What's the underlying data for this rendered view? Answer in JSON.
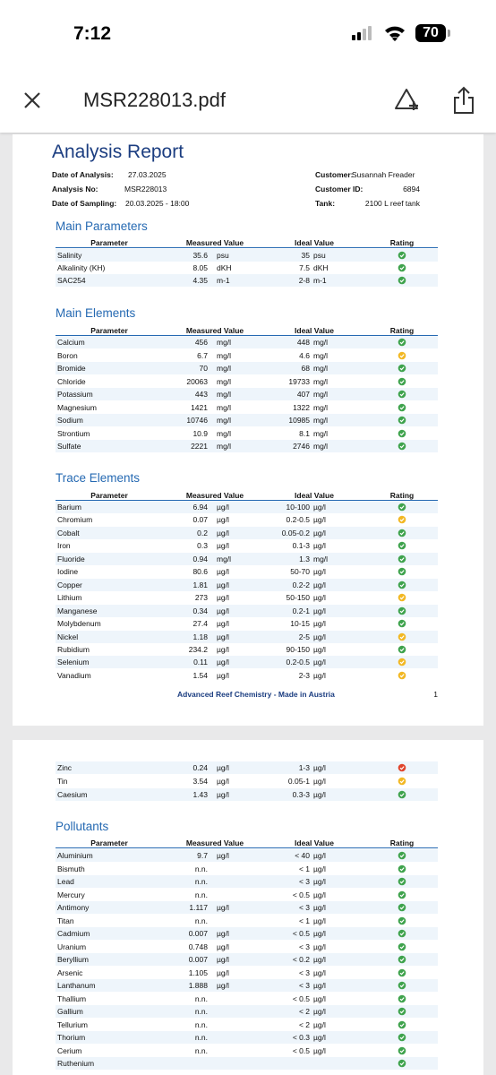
{
  "status_bar": {
    "time": "7:12",
    "battery": "70"
  },
  "nav": {
    "file_name": "MSR228013.pdf"
  },
  "report": {
    "title": "Analysis Report",
    "meta_left": [
      [
        "Date of Analysis:",
        "27.03.2025"
      ],
      [
        "Analysis No:",
        "MSR228013"
      ],
      [
        "Date of Sampling:",
        "20.03.2025 - 18:00"
      ]
    ],
    "meta_right": [
      [
        "Customer:",
        "Susannah Freader"
      ],
      [
        "Customer ID:",
        "6894"
      ],
      [
        "Tank:",
        "2100 L reef tank"
      ]
    ],
    "table_header": [
      "Parameter",
      "Measured Value",
      "Ideal Value",
      "Rating"
    ],
    "footer": "Advanced Reef Chemistry - Made in Austria",
    "page_number": "1",
    "sections": [
      {
        "title": "Main Parameters",
        "rows": [
          [
            "Salinity",
            "35.6",
            "psu",
            "35",
            "psu",
            "#3fa34d"
          ],
          [
            "Alkalinity (KH)",
            "8.05",
            "dKH",
            "7.5",
            "dKH",
            "#3fa34d"
          ],
          [
            "SAC254",
            "4.35",
            "m-1",
            "2-8",
            "m-1",
            "#3fa34d"
          ]
        ]
      },
      {
        "title": "Main Elements",
        "rows": [
          [
            "Calcium",
            "456",
            "mg/l",
            "448",
            "mg/l",
            "#3fa34d"
          ],
          [
            "Boron",
            "6.7",
            "mg/l",
            "4.6",
            "mg/l",
            "#f2b824"
          ],
          [
            "Bromide",
            "70",
            "mg/l",
            "68",
            "mg/l",
            "#3fa34d"
          ],
          [
            "Chloride",
            "20063",
            "mg/l",
            "19733",
            "mg/l",
            "#3fa34d"
          ],
          [
            "Potassium",
            "443",
            "mg/l",
            "407",
            "mg/l",
            "#3fa34d"
          ],
          [
            "Magnesium",
            "1421",
            "mg/l",
            "1322",
            "mg/l",
            "#3fa34d"
          ],
          [
            "Sodium",
            "10746",
            "mg/l",
            "10985",
            "mg/l",
            "#3fa34d"
          ],
          [
            "Strontium",
            "10.9",
            "mg/l",
            "8.1",
            "mg/l",
            "#3fa34d"
          ],
          [
            "Sulfate",
            "2221",
            "mg/l",
            "2746",
            "mg/l",
            "#3fa34d"
          ]
        ]
      },
      {
        "title": "Trace Elements",
        "rows": [
          [
            "Barium",
            "6.94",
            "µg/l",
            "10-100",
            "µg/l",
            "#3fa34d"
          ],
          [
            "Chromium",
            "0.07",
            "µg/l",
            "0.2-0.5",
            "µg/l",
            "#f2b824"
          ],
          [
            "Cobalt",
            "0.2",
            "µg/l",
            "0.05-0.2",
            "µg/l",
            "#3fa34d"
          ],
          [
            "Iron",
            "0.3",
            "µg/l",
            "0.1-3",
            "µg/l",
            "#3fa34d"
          ],
          [
            "Fluoride",
            "0.94",
            "mg/l",
            "1.3",
            "mg/l",
            "#3fa34d"
          ],
          [
            "Iodine",
            "80.6",
            "µg/l",
            "50-70",
            "µg/l",
            "#3fa34d"
          ],
          [
            "Copper",
            "1.81",
            "µg/l",
            "0.2-2",
            "µg/l",
            "#3fa34d"
          ],
          [
            "Lithium",
            "273",
            "µg/l",
            "50-150",
            "µg/l",
            "#f2b824"
          ],
          [
            "Manganese",
            "0.34",
            "µg/l",
            "0.2-1",
            "µg/l",
            "#3fa34d"
          ],
          [
            "Molybdenum",
            "27.4",
            "µg/l",
            "10-15",
            "µg/l",
            "#3fa34d"
          ],
          [
            "Nickel",
            "1.18",
            "µg/l",
            "2-5",
            "µg/l",
            "#f2b824"
          ],
          [
            "Rubidium",
            "234.2",
            "µg/l",
            "90-150",
            "µg/l",
            "#3fa34d"
          ],
          [
            "Selenium",
            "0.11",
            "µg/l",
            "0.2-0.5",
            "µg/l",
            "#f2b824"
          ],
          [
            "Vanadium",
            "1.54",
            "µg/l",
            "2-3",
            "µg/l",
            "#f2b824"
          ]
        ]
      },
      {
        "rows": [
          [
            "Zinc",
            "0.24",
            "µg/l",
            "1-3",
            "µg/l",
            "#e0452c"
          ],
          [
            "Tin",
            "3.54",
            "µg/l",
            "0.05-1",
            "µg/l",
            "#f2b824"
          ],
          [
            "Caesium",
            "1.43",
            "µg/l",
            "0.3-3",
            "µg/l",
            "#3fa34d"
          ]
        ]
      },
      {
        "title": "Pollutants",
        "rows": [
          [
            "Aluminium",
            "9.7",
            "µg/l",
            "< 40",
            "µg/l",
            "#3fa34d"
          ],
          [
            "Bismuth",
            "n.n.",
            null,
            "< 1",
            "µg/l",
            "#3fa34d"
          ],
          [
            "Lead",
            "n.n.",
            null,
            "< 3",
            "µg/l",
            "#3fa34d"
          ],
          [
            "Mercury",
            "n.n.",
            null,
            "< 0.5",
            "µg/l",
            "#3fa34d"
          ],
          [
            "Antimony",
            "1.117",
            "µg/l",
            "< 3",
            "µg/l",
            "#3fa34d"
          ],
          [
            "Titan",
            "n.n.",
            null,
            "< 1",
            "µg/l",
            "#3fa34d"
          ],
          [
            "Cadmium",
            "0.007",
            "µg/l",
            "< 0.5",
            "µg/l",
            "#3fa34d"
          ],
          [
            "Uranium",
            "0.748",
            "µg/l",
            "< 3",
            "µg/l",
            "#3fa34d"
          ],
          [
            "Beryllium",
            "0.007",
            "µg/l",
            "< 0.2",
            "µg/l",
            "#3fa34d"
          ],
          [
            "Arsenic",
            "1.105",
            "µg/l",
            "< 3",
            "µg/l",
            "#3fa34d"
          ],
          [
            "Lanthanum",
            "1.888",
            "µg/l",
            "< 3",
            "µg/l",
            "#3fa34d"
          ],
          [
            "Thallium",
            "n.n.",
            null,
            "< 0.5",
            "µg/l",
            "#3fa34d"
          ],
          [
            "Gallium",
            "n.n.",
            null,
            "< 2",
            "µg/l",
            "#3fa34d"
          ],
          [
            "Tellurium",
            "n.n.",
            null,
            "< 2",
            "µg/l",
            "#3fa34d"
          ],
          [
            "Thorium",
            "n.n.",
            null,
            "< 0.3",
            "µg/l",
            "#3fa34d"
          ],
          [
            "Cerium",
            "n.n.",
            null,
            "< 0.5",
            "µg/l",
            "#3fa34d"
          ],
          [
            "Ruthenium",
            null,
            null,
            null,
            null,
            "#3fa34d"
          ]
        ]
      }
    ]
  }
}
